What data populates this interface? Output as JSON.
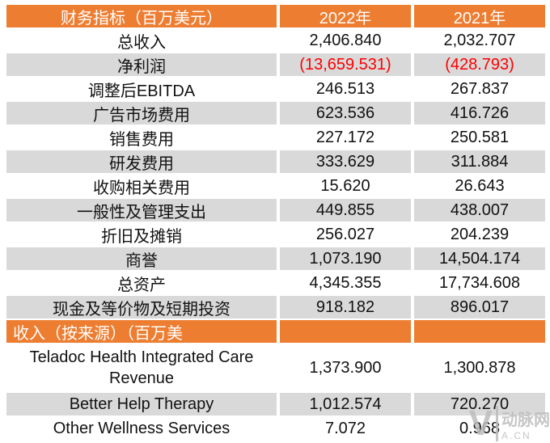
{
  "chart_data": {
    "type": "table",
    "columns": [
      "财务指标（百万美元）",
      "2022年",
      "2021年"
    ],
    "rows": [
      {
        "label": "总收入",
        "v2022": "2,406.840",
        "v2021": "2,032.707",
        "negative": false
      },
      {
        "label": "净利润",
        "v2022": "(13,659.531)",
        "v2021": "(428.793)",
        "negative": true
      },
      {
        "label": "调整后EBITDA",
        "v2022": "246.513",
        "v2021": "267.837",
        "negative": false
      },
      {
        "label": "广告市场费用",
        "v2022": "623.536",
        "v2021": "416.726",
        "negative": false
      },
      {
        "label": "销售费用",
        "v2022": "227.172",
        "v2021": "250.581",
        "negative": false
      },
      {
        "label": "研发费用",
        "v2022": "333.629",
        "v2021": "311.884",
        "negative": false
      },
      {
        "label": "收购相关费用",
        "v2022": "15.620",
        "v2021": "26.643",
        "negative": false
      },
      {
        "label": "一般性及管理支出",
        "v2022": "449.855",
        "v2021": "438.007",
        "negative": false
      },
      {
        "label": "折旧及摊销",
        "v2022": "256.027",
        "v2021": "204.239",
        "negative": false
      },
      {
        "label": "商誉",
        "v2022": "1,073.190",
        "v2021": "14,504.174",
        "negative": false
      },
      {
        "label": "总资产",
        "v2022": "4,345.355",
        "v2021": "17,734.608",
        "negative": false
      },
      {
        "label": "现金及等价物及短期投资",
        "v2022": "918.182",
        "v2021": "896.017",
        "negative": false
      }
    ],
    "section2": {
      "header": "收入（按来源）（百万美",
      "rows": [
        {
          "label": "Teladoc Health Integrated Care Revenue",
          "v2022": "1,373.900",
          "v2021": "1,300.878",
          "negative": false
        },
        {
          "label": "Better Help Therapy",
          "v2022": "1,012.574",
          "v2021": "720.270",
          "negative": false
        },
        {
          "label": "Other Wellness Services",
          "v2022": "7.072",
          "v2021": "0.968",
          "negative": false
        }
      ]
    },
    "colors": {
      "header_bg": "#ED7D31",
      "stripe": "#D9D9D9",
      "negative": "#FF0000"
    }
  },
  "watermark": {
    "mark": "V",
    "line1": "动脉网",
    "line2": "A.CN"
  }
}
